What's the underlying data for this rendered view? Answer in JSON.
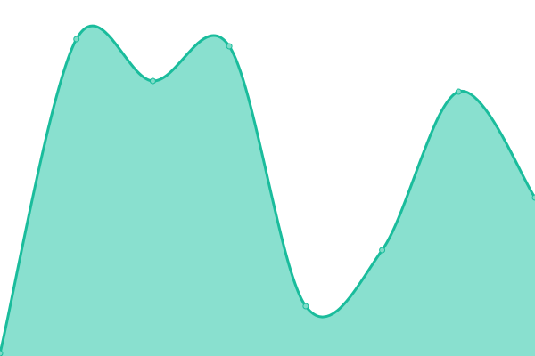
{
  "chart_data": {
    "type": "area",
    "x": [
      0,
      1,
      2,
      3,
      4,
      5,
      6,
      7
    ],
    "values": [
      3,
      356,
      309,
      348,
      56,
      119,
      297,
      178
    ],
    "ylim": [
      0,
      400
    ],
    "xlim": [
      0,
      7
    ],
    "grid": false,
    "axes": false,
    "legend": "none",
    "curve": "smooth",
    "colors": {
      "line": "#1abc9c",
      "fill": "#89e0cf",
      "marker": "#7fdcc8"
    }
  }
}
